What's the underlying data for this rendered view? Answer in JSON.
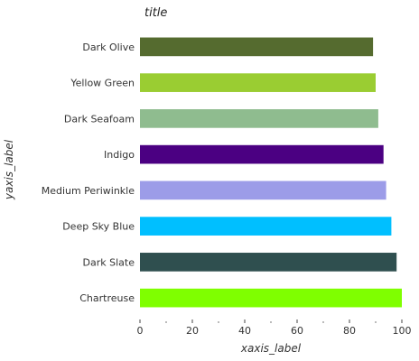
{
  "chart_data": {
    "type": "bar",
    "orientation": "horizontal",
    "title": "title",
    "xlabel": "xaxis_label",
    "ylabel": "yaxis_label",
    "xlim": [
      0,
      100
    ],
    "xticks": [
      0,
      20,
      40,
      60,
      80,
      100
    ],
    "grid": false,
    "categories": [
      "Dark Olive",
      "Yellow Green",
      "Dark Seafoam",
      "Indigo",
      "Medium Periwinkle",
      "Deep Sky Blue",
      "Dark Slate",
      "Chartreuse"
    ],
    "values": [
      89,
      90,
      91,
      93,
      94,
      96,
      98,
      100
    ],
    "colors": [
      "#556b2f",
      "#9acd32",
      "#8fbc8f",
      "#4b0082",
      "#9c9ce8",
      "#00bfff",
      "#2f4f4f",
      "#7fff00"
    ]
  }
}
